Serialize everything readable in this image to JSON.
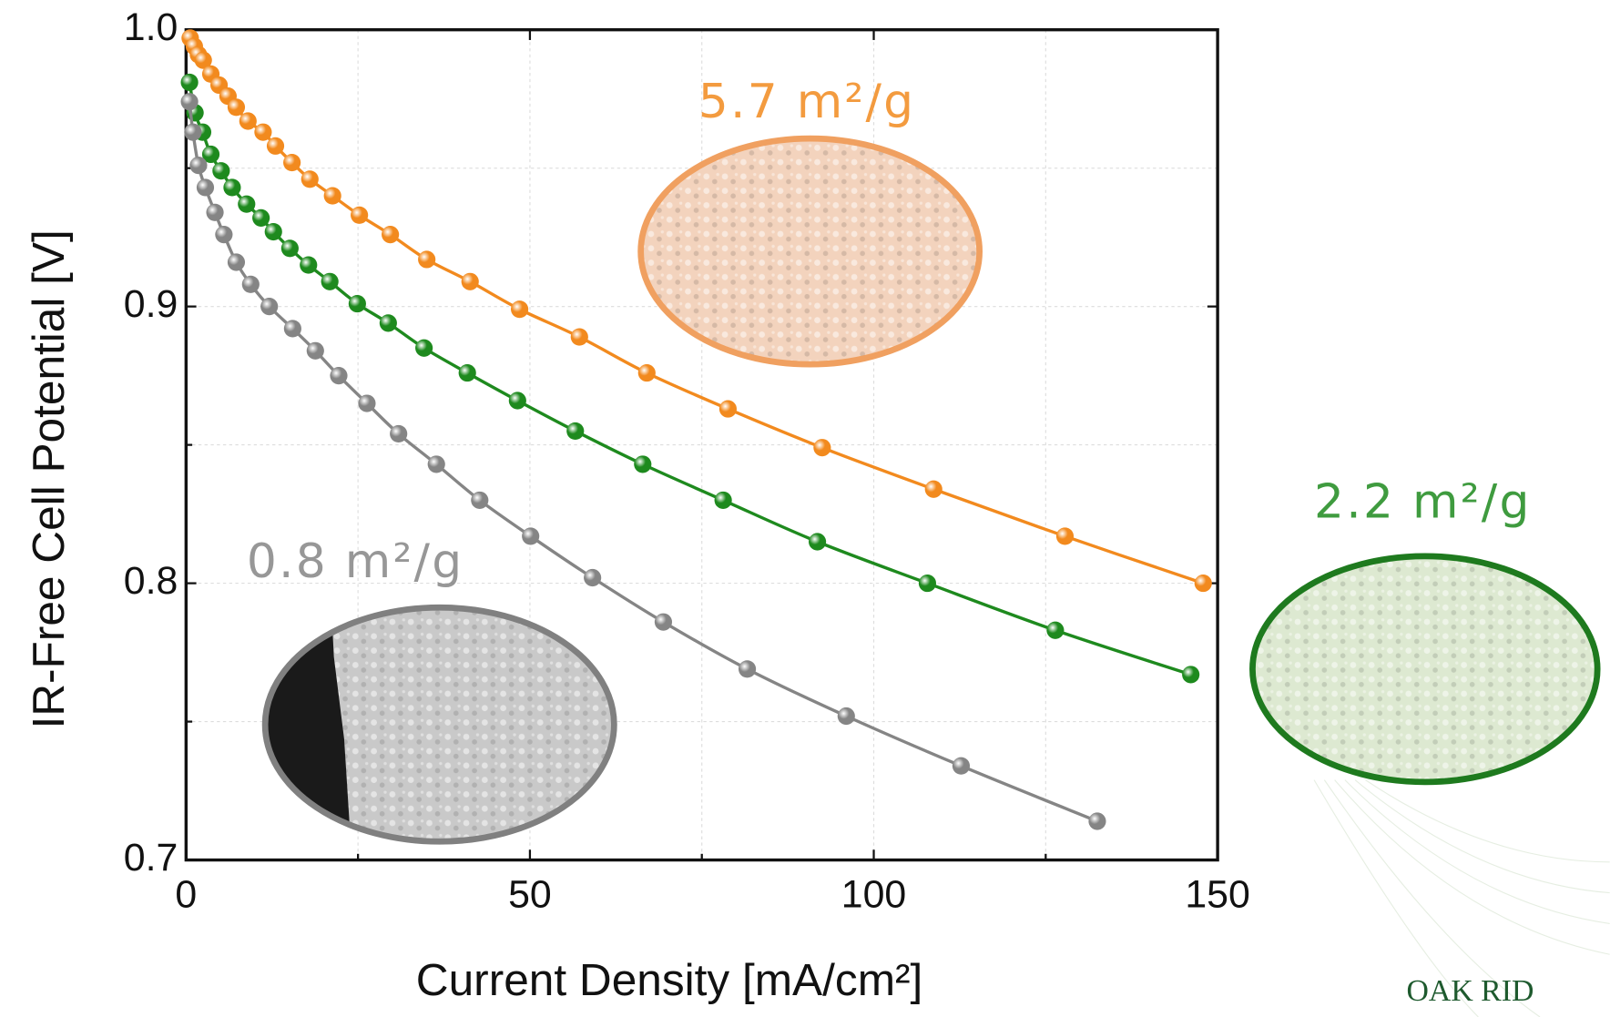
{
  "chart_data": {
    "type": "line",
    "xlabel": "Current Density [mA/cm²]",
    "ylabel": "IR-Free Cell Potential [V]",
    "xlim": [
      0,
      150
    ],
    "ylim": [
      0.7,
      1.0
    ],
    "xticks": [
      0,
      50,
      100,
      150
    ],
    "yticks": [
      0.7,
      0.8,
      0.9,
      {
        "value": 1,
        "label": "1.0"
      }
    ],
    "minor_xticks": [
      25,
      75,
      125
    ],
    "minor_yticks": [
      0.75,
      0.85,
      0.95
    ],
    "grid": true,
    "series": [
      {
        "name": "5.7 m²/g",
        "color": "#f28a1e",
        "x": [
          0.6,
          1.2,
          1.8,
          2.5,
          3.6,
          4.8,
          6.1,
          7.3,
          9,
          11.2,
          13,
          15.4,
          18,
          21.3,
          25.2,
          29.7,
          35,
          41.3,
          48.5,
          57.2,
          67,
          78.8,
          92.5,
          108.7,
          127.8,
          147.9
        ],
        "values": [
          0.997,
          0.994,
          0.991,
          0.989,
          0.984,
          0.98,
          0.976,
          0.972,
          0.967,
          0.963,
          0.958,
          0.952,
          0.946,
          0.94,
          0.933,
          0.926,
          0.917,
          0.909,
          0.899,
          0.889,
          0.876,
          0.863,
          0.849,
          0.834,
          0.817,
          0.8
        ]
      },
      {
        "name": "2.2 m²/g",
        "color": "#1e8a1e",
        "x": [
          0.5,
          1.3,
          2.4,
          3.6,
          5.1,
          6.7,
          8.8,
          10.9,
          12.7,
          15.1,
          17.8,
          20.9,
          24.9,
          29.4,
          34.6,
          40.9,
          48.2,
          56.6,
          66.4,
          78.1,
          91.8,
          107.8,
          126.4,
          146.1
        ],
        "values": [
          0.981,
          0.97,
          0.963,
          0.955,
          0.949,
          0.943,
          0.937,
          0.932,
          0.927,
          0.921,
          0.915,
          0.909,
          0.901,
          0.894,
          0.885,
          0.876,
          0.866,
          0.855,
          0.843,
          0.83,
          0.815,
          0.8,
          0.783,
          0.767
        ]
      },
      {
        "name": "0.8 m²/g",
        "color": "#858585",
        "x": [
          0.5,
          1,
          1.8,
          2.8,
          4.2,
          5.5,
          7.3,
          9.4,
          12.1,
          15.5,
          18.8,
          22.2,
          26.3,
          30.9,
          36.4,
          42.7,
          50.1,
          59.1,
          69.4,
          81.6,
          96,
          112.7,
          132.5
        ],
        "values": [
          0.974,
          0.963,
          0.951,
          0.943,
          0.934,
          0.926,
          0.916,
          0.908,
          0.9,
          0.892,
          0.884,
          0.875,
          0.865,
          0.854,
          0.843,
          0.83,
          0.817,
          0.802,
          0.786,
          0.769,
          0.752,
          0.734,
          0.714
        ]
      }
    ],
    "logo_text": "OAK RID"
  }
}
